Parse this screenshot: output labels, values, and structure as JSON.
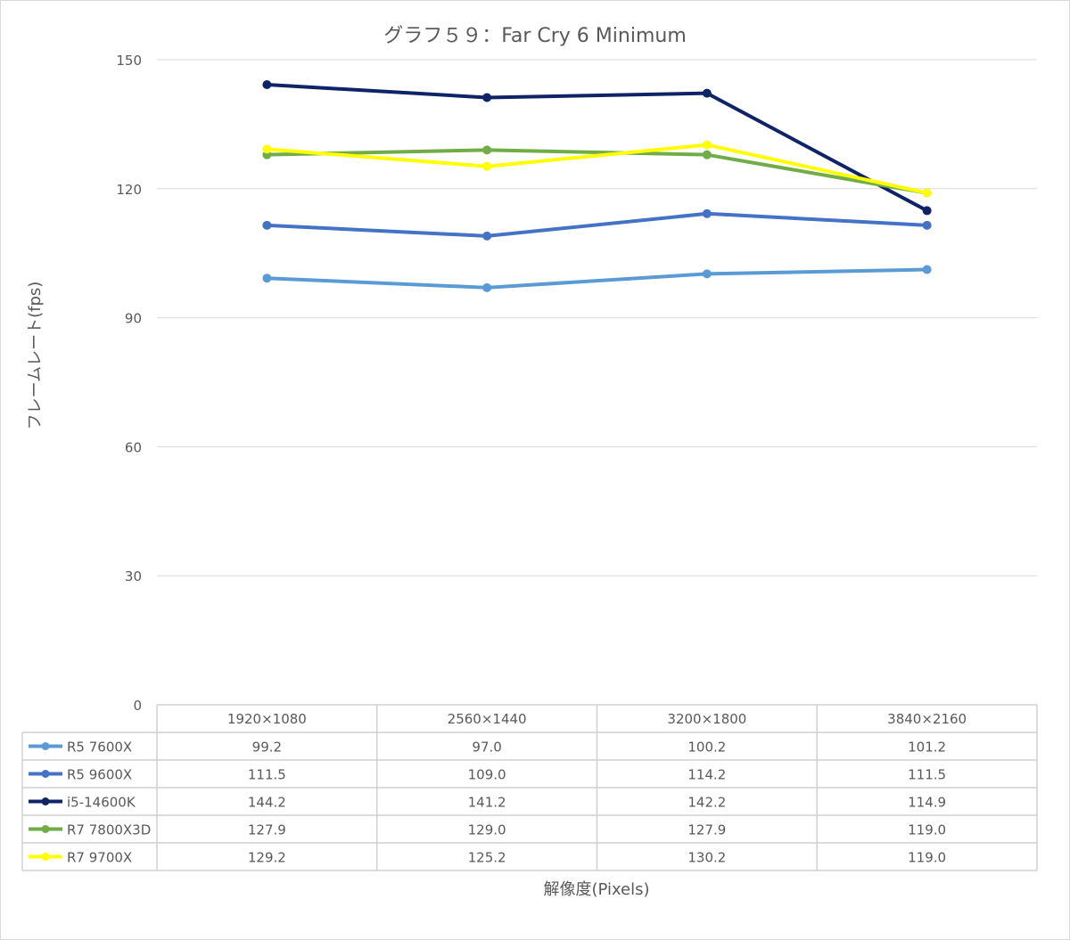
{
  "chart_data": {
    "type": "line",
    "title": "グラフ５９：Far Cry 6 Minimum",
    "xlabel": "解像度(Pixels)",
    "ylabel": "フレームレート(fps)",
    "ylim": [
      0,
      150
    ],
    "yticks": [
      0,
      30,
      60,
      90,
      120,
      150
    ],
    "grid": true,
    "legend": "data-table",
    "categories": [
      "1920×1080",
      "2560×1440",
      "3200×1800",
      "3840×2160"
    ],
    "series": [
      {
        "name": "R5 7600X",
        "color": "#5b9bd5",
        "values": [
          99.2,
          97.0,
          100.2,
          101.2
        ],
        "labels": [
          "99.2",
          "97.0",
          "100.2",
          "101.2"
        ]
      },
      {
        "name": "R5 9600X",
        "color": "#4472c4",
        "values": [
          111.5,
          109.0,
          114.2,
          111.5
        ],
        "labels": [
          "111.5",
          "109.0",
          "114.2",
          "111.5"
        ]
      },
      {
        "name": "i5-14600K",
        "color": "#0f2466",
        "values": [
          144.2,
          141.2,
          142.2,
          114.9
        ],
        "labels": [
          "144.2",
          "141.2",
          "142.2",
          "114.9"
        ]
      },
      {
        "name": "R7 7800X3D",
        "color": "#70ad47",
        "values": [
          127.9,
          129.0,
          127.9,
          119.0
        ],
        "labels": [
          "127.9",
          "129.0",
          "127.9",
          "119.0"
        ]
      },
      {
        "name": "R7 9700X",
        "color": "#ffff00",
        "values": [
          129.2,
          125.2,
          130.2,
          119.0
        ],
        "labels": [
          "129.2",
          "125.2",
          "130.2",
          "119.0"
        ]
      }
    ]
  }
}
